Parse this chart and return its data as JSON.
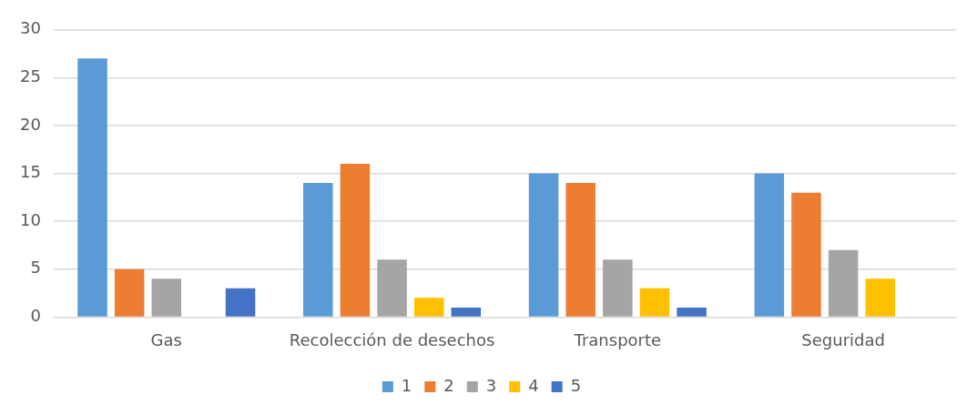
{
  "chart_data": {
    "type": "bar",
    "categories": [
      "Gas",
      "Recolección de desechos",
      "Transporte",
      "Seguridad"
    ],
    "series": [
      {
        "name": "1",
        "color": "#5b9bd5",
        "values": [
          27,
          14,
          15,
          15
        ]
      },
      {
        "name": "2",
        "color": "#ed7d31",
        "values": [
          5,
          16,
          14,
          13
        ]
      },
      {
        "name": "3",
        "color": "#a5a5a5",
        "values": [
          4,
          6,
          6,
          7
        ]
      },
      {
        "name": "4",
        "color": "#ffc000",
        "values": [
          null,
          2,
          3,
          4
        ]
      },
      {
        "name": "5",
        "color": "#4472c4",
        "values": [
          3,
          1,
          1,
          null
        ]
      }
    ],
    "ylim": [
      0,
      30
    ],
    "yticks": [
      0,
      5,
      10,
      15,
      20,
      25,
      30
    ],
    "grid": "y",
    "legend": "bottom"
  }
}
